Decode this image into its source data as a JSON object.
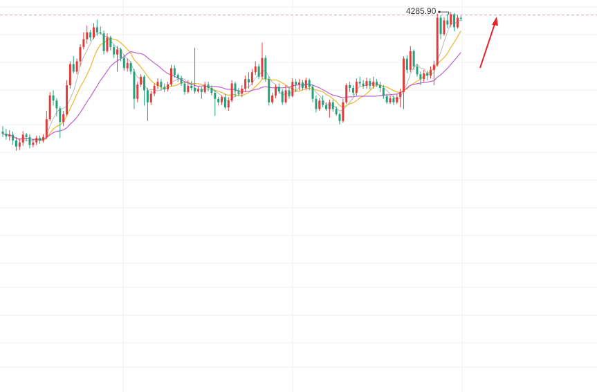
{
  "chart_data": {
    "type": "candlestick",
    "annotations": {
      "peak_label": "4285.90",
      "reference_line": 4285.9,
      "trend_arrow": "up"
    },
    "y_range": [
      3180,
      4330
    ],
    "grid": true,
    "colors": {
      "up": "#e03c3c",
      "down": "#26a17b",
      "ma_fast": "#f0b429",
      "ma_slow": "#c05ecf",
      "ma_thin": "#b8b8b8",
      "ref_line": "#d9a0a0",
      "arrow": "#e8232b"
    },
    "candles": [
      [
        3944,
        3938,
        3960,
        3928
      ],
      [
        3938,
        3930,
        3952,
        3920
      ],
      [
        3930,
        3935,
        3948,
        3918
      ],
      [
        3935,
        3918,
        3944,
        3905
      ],
      [
        3918,
        3900,
        3928,
        3888
      ],
      [
        3900,
        3912,
        3922,
        3890
      ],
      [
        3912,
        3935,
        3945,
        3902
      ],
      [
        3935,
        3928,
        3940,
        3915
      ],
      [
        3928,
        3905,
        3936,
        3895
      ],
      [
        3905,
        3912,
        3922,
        3898
      ],
      [
        3912,
        3925,
        3932,
        3905
      ],
      [
        3925,
        3918,
        3932,
        3908
      ],
      [
        3918,
        3928,
        3936,
        3912
      ],
      [
        3928,
        3980,
        4005,
        3922
      ],
      [
        3980,
        4050,
        4060,
        3975
      ],
      [
        4050,
        4035,
        4065,
        4020
      ],
      [
        4035,
        4012,
        4042,
        3988
      ],
      [
        4012,
        3972,
        4018,
        3925
      ],
      [
        3972,
        3995,
        4005,
        3960
      ],
      [
        3995,
        4080,
        4095,
        3990
      ],
      [
        4080,
        4142,
        4150,
        4070
      ],
      [
        4142,
        4120,
        4165,
        4115
      ],
      [
        4120,
        4150,
        4158,
        4112
      ],
      [
        4150,
        4192,
        4200,
        4135
      ],
      [
        4192,
        4215,
        4235,
        4185
      ],
      [
        4215,
        4235,
        4255,
        4202
      ],
      [
        4235,
        4220,
        4242,
        4210
      ],
      [
        4220,
        4250,
        4262,
        4215
      ],
      [
        4250,
        4235,
        4272,
        4225
      ],
      [
        4235,
        4232,
        4252,
        4228
      ],
      [
        4232,
        4180,
        4240,
        4170
      ],
      [
        4180,
        4220,
        4232,
        4175
      ],
      [
        4220,
        4192,
        4225,
        4182
      ],
      [
        4192,
        4170,
        4200,
        4160
      ],
      [
        4170,
        4185,
        4195,
        4120
      ],
      [
        4185,
        4160,
        4190,
        4150
      ],
      [
        4160,
        4130,
        4170,
        4122
      ],
      [
        4130,
        4145,
        4158,
        4120
      ],
      [
        4145,
        4120,
        4150,
        4112
      ],
      [
        4120,
        4040,
        4128,
        4010
      ],
      [
        4040,
        4082,
        4090,
        4030
      ],
      [
        4082,
        4105,
        4112,
        4075
      ],
      [
        4105,
        4065,
        4110,
        4020
      ],
      [
        4065,
        4030,
        4072,
        3975
      ],
      [
        4030,
        4055,
        4064,
        4022
      ],
      [
        4055,
        4078,
        4085,
        4048
      ],
      [
        4078,
        4090,
        4100,
        4068
      ],
      [
        4090,
        4075,
        4098,
        4065
      ],
      [
        4075,
        4068,
        4085,
        4060
      ],
      [
        4068,
        4082,
        4090,
        4062
      ],
      [
        4082,
        4130,
        4140,
        4076
      ],
      [
        4130,
        4110,
        4138,
        4102
      ],
      [
        4110,
        4100,
        4115,
        4090
      ],
      [
        4100,
        4085,
        4108,
        4078
      ],
      [
        4085,
        4060,
        4092,
        4052
      ],
      [
        4060,
        4078,
        4095,
        4055
      ],
      [
        4078,
        4072,
        4092,
        4065
      ],
      [
        4072,
        4062,
        4190,
        4055
      ],
      [
        4062,
        4068,
        4075,
        4058
      ],
      [
        4068,
        4060,
        4075,
        4040
      ],
      [
        4060,
        4082,
        4090,
        4055
      ],
      [
        4082,
        4072,
        4090,
        4062
      ],
      [
        4072,
        4058,
        4080,
        4050
      ],
      [
        4058,
        4040,
        4066,
        3990
      ],
      [
        4040,
        4030,
        4046,
        4020
      ],
      [
        4030,
        4045,
        4050,
        4022
      ],
      [
        4045,
        4015,
        4055,
        4010
      ],
      [
        4015,
        4035,
        4045,
        4005
      ],
      [
        4035,
        4085,
        4095,
        4030
      ],
      [
        4085,
        4062,
        4090,
        4045
      ],
      [
        4062,
        4055,
        4072,
        4048
      ],
      [
        4055,
        4070,
        4080,
        4045
      ],
      [
        4070,
        4098,
        4108,
        4060
      ],
      [
        4098,
        4088,
        4118,
        4070
      ],
      [
        4088,
        4118,
        4128,
        4080
      ],
      [
        4118,
        4135,
        4150,
        4110
      ],
      [
        4135,
        4105,
        4142,
        4098
      ],
      [
        4105,
        4160,
        4205,
        4098
      ],
      [
        4160,
        4098,
        4168,
        4090
      ],
      [
        4098,
        4030,
        4106,
        4020
      ],
      [
        4030,
        4050,
        4058,
        4025
      ],
      [
        4050,
        4075,
        4082,
        4042
      ],
      [
        4075,
        4062,
        4085,
        4055
      ],
      [
        4062,
        4030,
        4068,
        4022
      ],
      [
        4030,
        4065,
        4080,
        4025
      ],
      [
        4065,
        4048,
        4075,
        4040
      ],
      [
        4048,
        4090,
        4100,
        4045
      ],
      [
        4090,
        4082,
        4098,
        4060
      ],
      [
        4082,
        4088,
        4098,
        4065
      ],
      [
        4088,
        4072,
        4095,
        4065
      ],
      [
        4072,
        4095,
        4102,
        4065
      ],
      [
        4095,
        4075,
        4100,
        4065
      ],
      [
        4075,
        4040,
        4082,
        4030
      ],
      [
        4040,
        4010,
        4050,
        4000
      ],
      [
        4010,
        4035,
        4042,
        4005
      ],
      [
        4035,
        4022,
        4050,
        4015
      ],
      [
        4022,
        4010,
        4030,
        4005
      ],
      [
        4010,
        4030,
        4038,
        3985
      ],
      [
        4030,
        4010,
        4038,
        4002
      ],
      [
        4010,
        3995,
        4018,
        3990
      ],
      [
        3995,
        3975,
        4000,
        3965
      ],
      [
        3975,
        4030,
        4040,
        3970
      ],
      [
        4030,
        4080,
        4085,
        4025
      ],
      [
        4080,
        4072,
        4090,
        4060
      ],
      [
        4072,
        4058,
        4080,
        4050
      ],
      [
        4058,
        4090,
        4100,
        4050
      ],
      [
        4090,
        4085,
        4105,
        4078
      ],
      [
        4085,
        4078,
        4095,
        4070
      ],
      [
        4078,
        4092,
        4102,
        4070
      ],
      [
        4092,
        4078,
        4100,
        4068
      ],
      [
        4078,
        4090,
        4105,
        4070
      ],
      [
        4090,
        4080,
        4098,
        4075
      ],
      [
        4080,
        4072,
        4090,
        4060
      ],
      [
        4072,
        4048,
        4080,
        4040
      ],
      [
        4048,
        4030,
        4055,
        4025
      ],
      [
        4030,
        4042,
        4050,
        4025
      ],
      [
        4042,
        4030,
        4050,
        4022
      ],
      [
        4030,
        4045,
        4055,
        4025
      ],
      [
        4045,
        4060,
        4070,
        4015
      ],
      [
        4060,
        4158,
        4165,
        4010
      ],
      [
        4158,
        4125,
        4168,
        4115
      ],
      [
        4125,
        4180,
        4195,
        4118
      ],
      [
        4180,
        4135,
        4185,
        4125
      ],
      [
        4135,
        4112,
        4142,
        4105
      ],
      [
        4112,
        4098,
        4120,
        4080
      ],
      [
        4098,
        4115,
        4125,
        4090
      ],
      [
        4115,
        4108,
        4122,
        4095
      ],
      [
        4108,
        4125,
        4135,
        4100
      ],
      [
        4125,
        4140,
        4152,
        4080
      ],
      [
        4140,
        4278,
        4290,
        4135
      ],
      [
        4278,
        4230,
        4285,
        4215
      ],
      [
        4230,
        4270,
        4280,
        4225
      ],
      [
        4270,
        4258,
        4290,
        4248
      ],
      [
        4258,
        4288,
        4295,
        4250
      ],
      [
        4288,
        4250,
        4292,
        4238
      ],
      [
        4250,
        4278,
        4286,
        4246
      ],
      [
        4278,
        4275,
        4283,
        4268
      ]
    ]
  }
}
